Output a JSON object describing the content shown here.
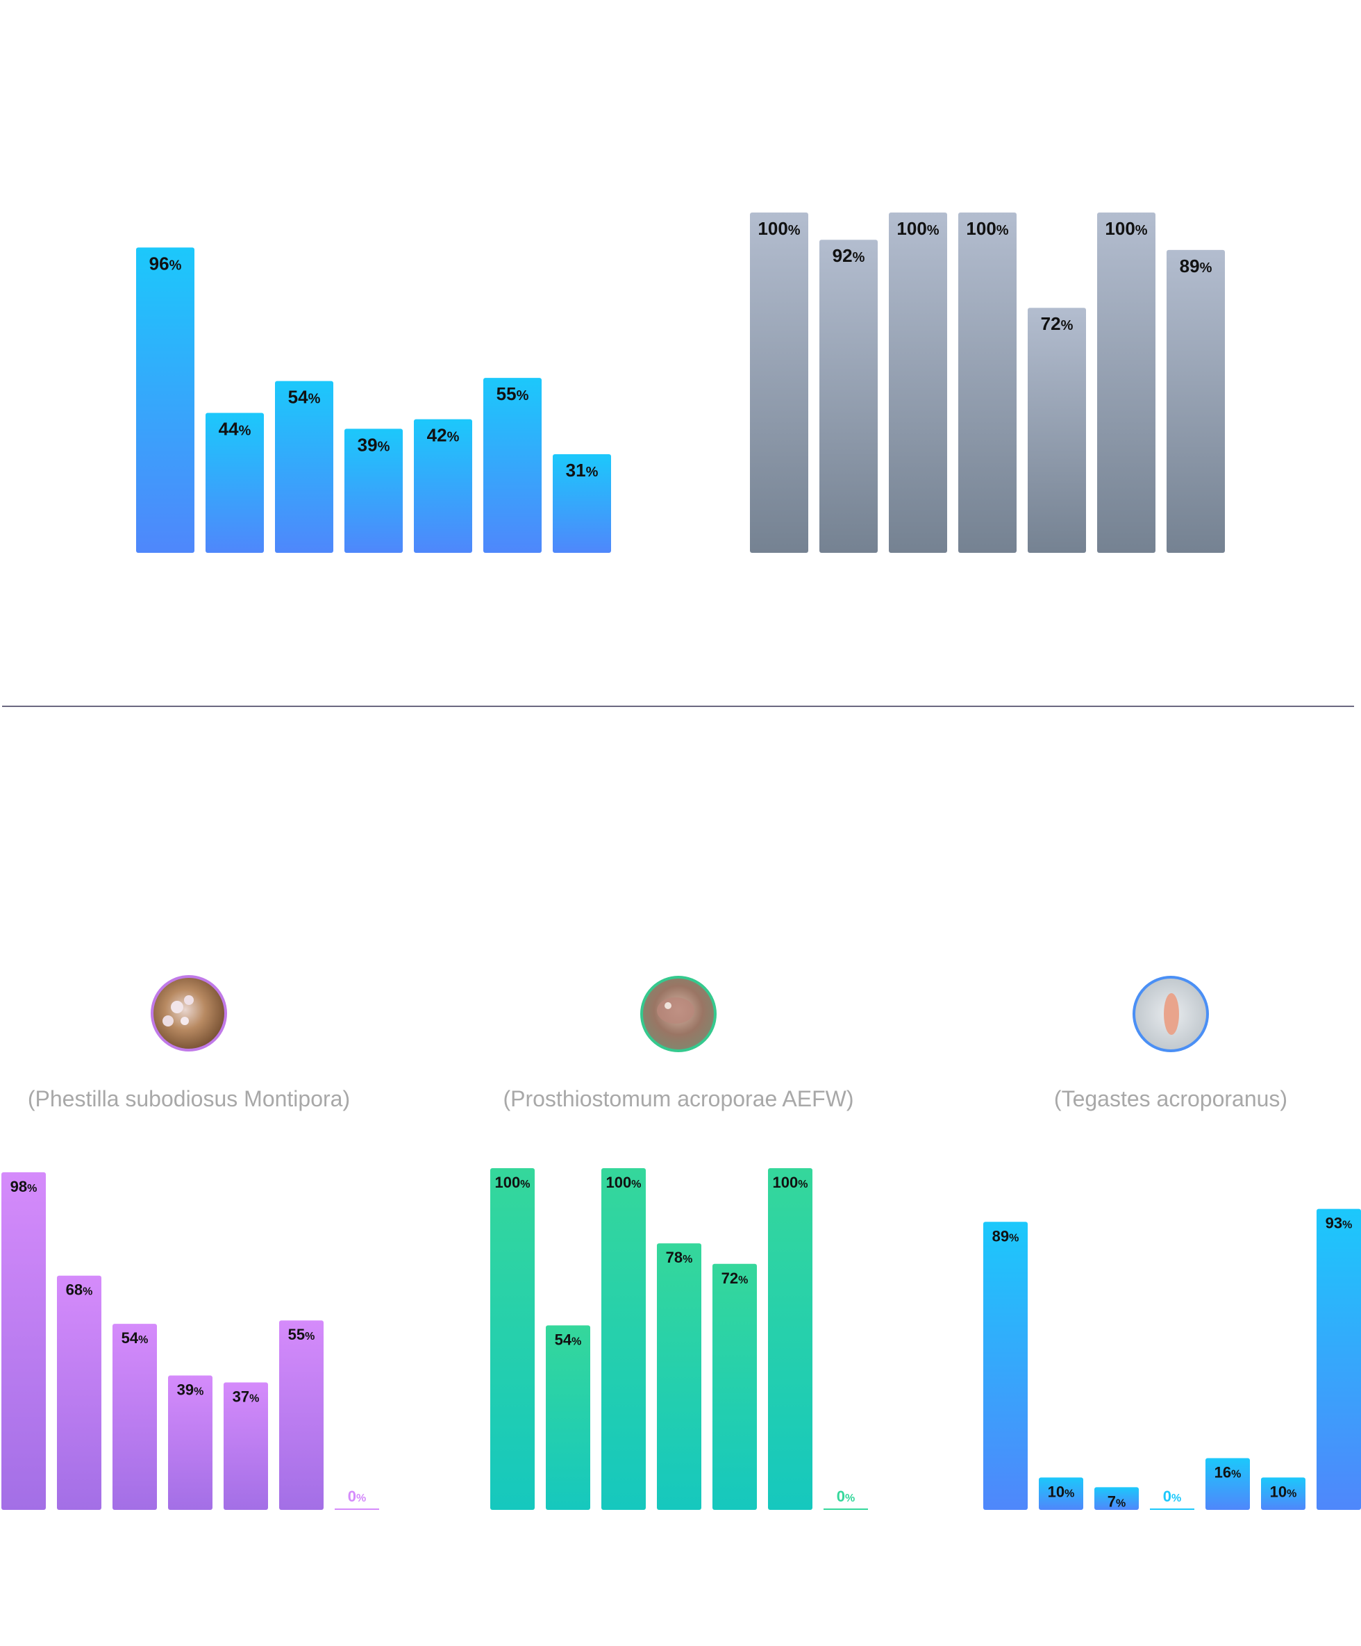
{
  "colors": {
    "blue_top": "#1cc8fb",
    "blue_bottom": "#4f87fb",
    "gray_top": "#b3bdcf",
    "gray_bottom": "#758292",
    "purple_top": "#d58bfb",
    "purple_bottom": "#a36fe6",
    "green_top": "#35d79b",
    "green_bottom": "#16c8be",
    "divider": "#6a6780",
    "caption": "#a8a8a8",
    "label": "#111111"
  },
  "top_section": {
    "divider": true
  },
  "species": [
    {
      "caption": "(Phestilla subodiosus Montipora)",
      "photo_icon": "nudibranch-photo",
      "ring_color": "#c07ae8"
    },
    {
      "caption": "(Prosthiostomum acroporae AEFW)",
      "photo_icon": "flatworm-photo",
      "ring_color": "#35c98e"
    },
    {
      "caption": "(Tegastes acroporanus)",
      "photo_icon": "copepod-photo",
      "ring_color": "#4a8ff5"
    }
  ],
  "chart_data": [
    {
      "type": "bar",
      "name": "top-left",
      "color_scheme": "blue",
      "ylim": [
        0,
        100
      ],
      "unit": "%",
      "values": [
        96,
        44,
        54,
        39,
        42,
        55,
        31
      ]
    },
    {
      "type": "bar",
      "name": "top-right",
      "color_scheme": "gray",
      "ylim": [
        0,
        100
      ],
      "unit": "%",
      "values": [
        100,
        92,
        100,
        100,
        72,
        100,
        89
      ]
    },
    {
      "type": "bar",
      "name": "phestilla",
      "color_scheme": "purple",
      "ylim": [
        0,
        100
      ],
      "unit": "%",
      "values": [
        98,
        68,
        54,
        39,
        37,
        55,
        0
      ]
    },
    {
      "type": "bar",
      "name": "prosthiostomum",
      "color_scheme": "green",
      "ylim": [
        0,
        100
      ],
      "unit": "%",
      "values": [
        100,
        54,
        100,
        78,
        72,
        100,
        0
      ]
    },
    {
      "type": "bar",
      "name": "tegastes",
      "color_scheme": "blue",
      "ylim": [
        0,
        100
      ],
      "unit": "%",
      "values": [
        89,
        10,
        7,
        0,
        16,
        10,
        93
      ]
    }
  ]
}
